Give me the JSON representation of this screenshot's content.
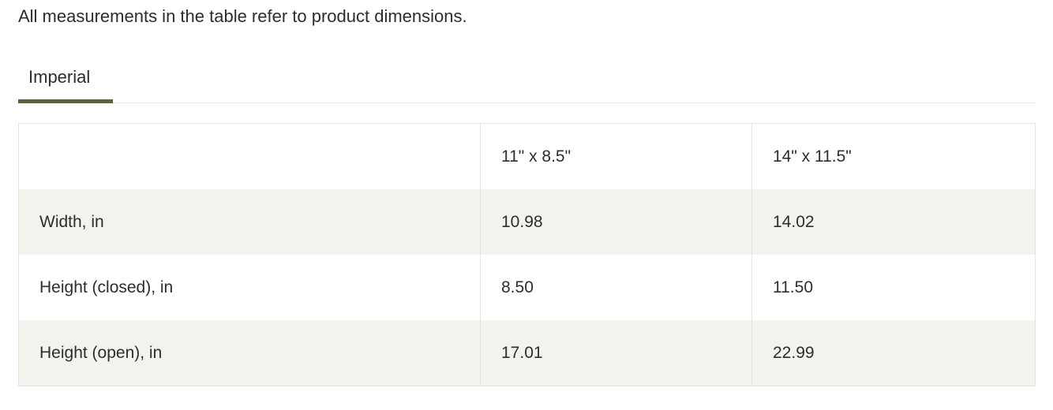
{
  "intro_text": "All measurements in the table refer to product dimensions.",
  "tabs": [
    {
      "label": "Imperial",
      "active": true
    }
  ],
  "table": {
    "columns": [
      "",
      "11\" x 8.5\"",
      "14\" x 11.5\""
    ],
    "rows": [
      {
        "label": "Width, in",
        "values": [
          "10.98",
          "14.02"
        ]
      },
      {
        "label": "Height (closed), in",
        "values": [
          "8.50",
          "11.50"
        ]
      },
      {
        "label": "Height (open), in",
        "values": [
          "17.01",
          "22.99"
        ]
      }
    ]
  },
  "colors": {
    "accent": "#5f5f3e",
    "row_shade": "#f3f3ee",
    "border": "#e4e4e2"
  }
}
